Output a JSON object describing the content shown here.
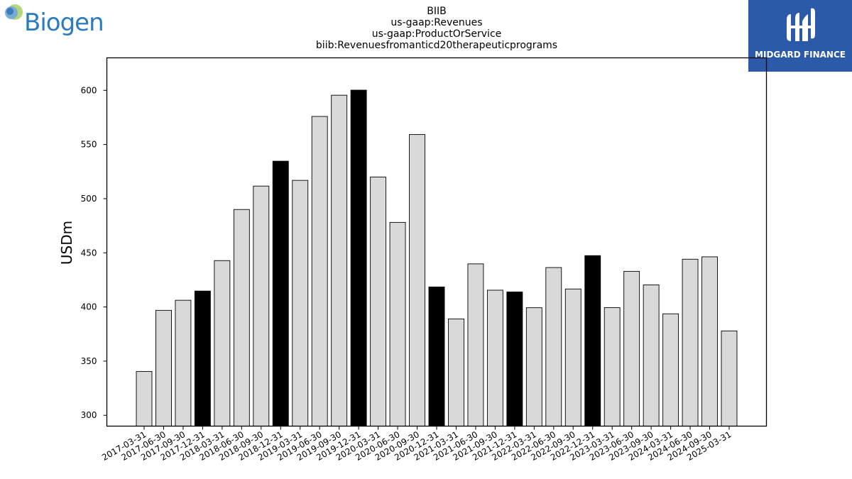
{
  "logos": {
    "left_brand": "Biogen",
    "right_brand": "MIDGARD FINANCE"
  },
  "colors": {
    "bar_default": "#d9d9d9",
    "bar_highlight": "#000000",
    "bar_edge": "#000000",
    "midgard_bg": "#2a5aa8",
    "biogen_blue": "#2b7bc0"
  },
  "chart_data": {
    "type": "bar",
    "title_lines": [
      "BIIB",
      "us-gaap:Revenues",
      "us-gaap:ProductOrService",
      "biib:Revenuesfromanticd20therapeuticprograms"
    ],
    "xlabel": "",
    "ylabel": "USDm",
    "ylim": [
      290,
      630
    ],
    "yticks": [
      300,
      350,
      400,
      450,
      500,
      550,
      600
    ],
    "grid": false,
    "legend": "none",
    "categories": [
      "2017-03-31",
      "2017-06-30",
      "2017-09-30",
      "2017-12-31",
      "2018-03-31",
      "2018-06-30",
      "2018-09-30",
      "2018-12-31",
      "2019-03-31",
      "2019-06-30",
      "2019-09-30",
      "2019-12-31",
      "2020-03-31",
      "2020-06-30",
      "2020-09-30",
      "2020-12-31",
      "2021-03-31",
      "2021-06-30",
      "2021-09-30",
      "2021-12-31",
      "2022-03-31",
      "2022-06-30",
      "2022-09-30",
      "2022-12-31",
      "2023-03-31",
      "2023-06-30",
      "2023-09-30",
      "2024-03-31",
      "2024-06-30",
      "2024-09-30",
      "2025-03-31"
    ],
    "values": [
      340.5,
      396.9,
      406.2,
      414.7,
      442.8,
      490.0,
      511.6,
      534.6,
      516.9,
      575.9,
      595.5,
      600.2,
      520.0,
      478.1,
      559.2,
      418.5,
      389.0,
      439.8,
      415.5,
      413.9,
      399.3,
      436.4,
      416.6,
      447.4,
      399.4,
      432.9,
      420.4,
      393.7,
      444.1,
      446.3,
      377.9
    ],
    "highlight": [
      false,
      false,
      false,
      true,
      false,
      false,
      false,
      true,
      false,
      false,
      false,
      true,
      false,
      false,
      false,
      true,
      false,
      false,
      false,
      true,
      false,
      false,
      false,
      true,
      false,
      false,
      false,
      false,
      false,
      false,
      false
    ]
  }
}
